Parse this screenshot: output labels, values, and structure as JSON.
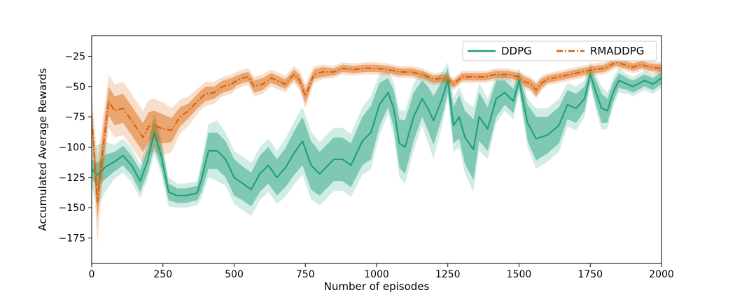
{
  "chart_data": {
    "type": "line",
    "title": "",
    "xlabel": "Number of episodes",
    "ylabel": "Accumulated Average Rewards",
    "xlim": [
      0,
      2000
    ],
    "ylim": [
      -196,
      -8
    ],
    "xticks": [
      0,
      250,
      500,
      750,
      1000,
      1250,
      1500,
      1750,
      2000
    ],
    "xtick_labels": [
      "0",
      "250",
      "500",
      "750",
      "1000",
      "1250",
      "1500",
      "1750",
      "2000"
    ],
    "yticks": [
      -175,
      -150,
      -125,
      -100,
      -75,
      -50,
      -25
    ],
    "ytick_labels": [
      "−175",
      "−150",
      "−125",
      "−100",
      "−75",
      "−50",
      "−25"
    ],
    "grid": false,
    "legend": {
      "placement": "top-right",
      "ncol": 2
    },
    "series": [
      {
        "name": "DDPG",
        "color": "#1b9e77",
        "line_style": "solid",
        "x": [
          0,
          20,
          50,
          80,
          110,
          140,
          170,
          195,
          220,
          245,
          270,
          300,
          330,
          370,
          385,
          410,
          440,
          470,
          500,
          530,
          560,
          590,
          620,
          650,
          680,
          710,
          740,
          770,
          800,
          850,
          880,
          910,
          950,
          980,
          1010,
          1040,
          1060,
          1080,
          1100,
          1130,
          1160,
          1180,
          1200,
          1230,
          1250,
          1270,
          1290,
          1310,
          1340,
          1360,
          1390,
          1420,
          1450,
          1480,
          1500,
          1530,
          1560,
          1600,
          1640,
          1670,
          1700,
          1730,
          1750,
          1770,
          1790,
          1810,
          1830,
          1850,
          1880,
          1900,
          1940,
          1970,
          2000
        ],
        "values": [
          -118,
          -123,
          -116,
          -112,
          -107,
          -115,
          -128,
          -112,
          -88,
          -108,
          -137,
          -140,
          -140,
          -138,
          -127,
          -103,
          -103,
          -110,
          -125,
          -130,
          -135,
          -122,
          -115,
          -125,
          -117,
          -105,
          -95,
          -115,
          -122,
          -110,
          -110,
          -115,
          -95,
          -88,
          -65,
          -55,
          -68,
          -97,
          -100,
          -75,
          -60,
          -68,
          -78,
          -60,
          -45,
          -82,
          -75,
          -92,
          -102,
          -75,
          -85,
          -60,
          -55,
          -62,
          -45,
          -80,
          -93,
          -90,
          -82,
          -65,
          -68,
          -60,
          -40,
          -55,
          -68,
          -70,
          -55,
          -45,
          -48,
          -50,
          -45,
          -48,
          -43
        ],
        "band1_half": [
          8,
          10,
          10,
          8,
          8,
          8,
          9,
          10,
          12,
          10,
          7,
          6,
          6,
          6,
          10,
          15,
          15,
          15,
          15,
          14,
          14,
          15,
          15,
          15,
          16,
          18,
          20,
          20,
          18,
          18,
          18,
          18,
          20,
          22,
          18,
          12,
          15,
          20,
          22,
          20,
          15,
          18,
          20,
          15,
          10,
          15,
          18,
          22,
          25,
          20,
          18,
          15,
          10,
          10,
          6,
          15,
          18,
          15,
          15,
          12,
          12,
          10,
          6,
          10,
          12,
          10,
          8,
          6,
          5,
          5,
          5,
          5,
          5
        ],
        "band2_half": [
          15,
          25,
          20,
          14,
          14,
          14,
          14,
          15,
          18,
          15,
          12,
          10,
          10,
          10,
          15,
          22,
          25,
          22,
          22,
          22,
          22,
          22,
          22,
          22,
          24,
          26,
          28,
          28,
          26,
          26,
          26,
          26,
          28,
          30,
          25,
          18,
          22,
          28,
          30,
          28,
          22,
          28,
          32,
          22,
          15,
          22,
          25,
          30,
          35,
          28,
          25,
          20,
          15,
          15,
          10,
          20,
          25,
          22,
          22,
          18,
          18,
          15,
          10,
          15,
          18,
          15,
          12,
          10,
          8,
          8,
          8,
          8,
          8
        ]
      },
      {
        "name": "RMADDPG",
        "color": "#d95f02",
        "line_style": "dashdot",
        "x": [
          0,
          20,
          40,
          60,
          80,
          110,
          140,
          160,
          180,
          200,
          220,
          250,
          280,
          310,
          340,
          380,
          400,
          430,
          460,
          490,
          510,
          530,
          550,
          570,
          600,
          630,
          650,
          680,
          710,
          730,
          750,
          780,
          810,
          850,
          880,
          920,
          960,
          1000,
          1040,
          1080,
          1120,
          1160,
          1200,
          1230,
          1250,
          1270,
          1300,
          1340,
          1380,
          1420,
          1460,
          1500,
          1520,
          1540,
          1560,
          1580,
          1600,
          1640,
          1680,
          1720,
          1760,
          1800,
          1840,
          1870,
          1900,
          1930,
          1960,
          2000
        ],
        "values": [
          -75,
          -145,
          -100,
          -62,
          -70,
          -68,
          -78,
          -85,
          -92,
          -83,
          -82,
          -85,
          -86,
          -75,
          -70,
          -60,
          -56,
          -55,
          -50,
          -48,
          -45,
          -43,
          -42,
          -50,
          -48,
          -43,
          -45,
          -48,
          -40,
          -45,
          -58,
          -40,
          -38,
          -38,
          -35,
          -36,
          -35,
          -35,
          -36,
          -38,
          -38,
          -40,
          -44,
          -43,
          -44,
          -48,
          -42,
          -42,
          -42,
          -40,
          -40,
          -42,
          -46,
          -48,
          -53,
          -47,
          -44,
          -42,
          -40,
          -38,
          -36,
          -35,
          -30,
          -32,
          -34,
          -32,
          -34,
          -35
        ],
        "band1_half": [
          10,
          15,
          15,
          12,
          12,
          12,
          12,
          12,
          12,
          12,
          12,
          12,
          10,
          8,
          6,
          6,
          6,
          5,
          5,
          5,
          4,
          4,
          4,
          5,
          5,
          4,
          4,
          4,
          4,
          5,
          6,
          4,
          4,
          3,
          3,
          3,
          3,
          3,
          3,
          3,
          3,
          3,
          3,
          3,
          3,
          3,
          3,
          3,
          3,
          3,
          3,
          3,
          4,
          4,
          5,
          4,
          3,
          3,
          3,
          3,
          3,
          3,
          3,
          3,
          3,
          3,
          3,
          3
        ],
        "band2_half": [
          20,
          35,
          25,
          22,
          22,
          22,
          22,
          22,
          22,
          22,
          22,
          22,
          18,
          14,
          12,
          10,
          10,
          9,
          8,
          8,
          7,
          7,
          7,
          8,
          8,
          7,
          7,
          7,
          7,
          8,
          10,
          7,
          6,
          5,
          5,
          5,
          5,
          5,
          5,
          5,
          5,
          5,
          5,
          5,
          5,
          5,
          5,
          5,
          5,
          5,
          5,
          5,
          6,
          6,
          7,
          6,
          5,
          5,
          5,
          5,
          5,
          5,
          5,
          5,
          5,
          5,
          5,
          5
        ]
      }
    ]
  }
}
